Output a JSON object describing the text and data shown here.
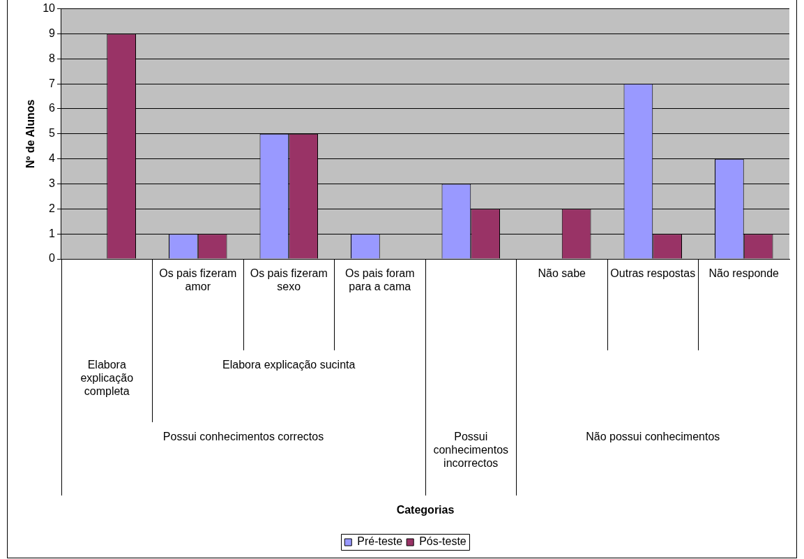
{
  "chart_data": {
    "type": "bar",
    "ylabel": "Nº de Alunos",
    "categories": [
      null,
      "Os pais fizeram amor",
      "Os pais fizeram sexo",
      "Os pais foram para a cama",
      null,
      "Não sabe",
      "Outras respostas",
      "Não responde"
    ],
    "series": [
      {
        "name": "Pré-teste",
        "color": "#9999ff",
        "values": [
          0,
          1,
          5,
          1,
          3,
          0,
          7,
          4
        ]
      },
      {
        "name": "Pós-teste",
        "color": "#993366",
        "values": [
          9,
          1,
          5,
          0,
          2,
          2,
          1,
          1
        ]
      }
    ],
    "annotations": [
      "Elabora explicação completa",
      "Elabora explicação sucinta",
      "Possui conhecimentos correctos",
      "Possui conhecimentos incorrectos",
      "Não possui conhecimentos",
      "Categorias"
    ],
    "ylim": [
      0,
      10
    ],
    "yticks": [
      0,
      1,
      2,
      3,
      4,
      5,
      6,
      7,
      8,
      9,
      10
    ],
    "grid": "y",
    "legend": "bottom"
  }
}
